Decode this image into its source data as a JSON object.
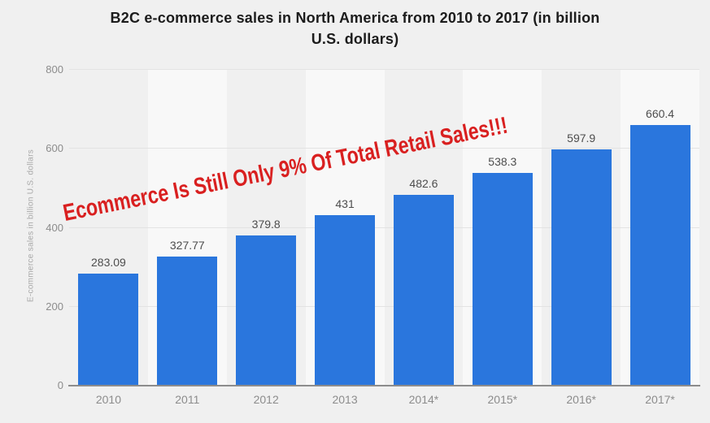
{
  "page": {
    "background": "#f0f0f0"
  },
  "title": {
    "line1": "B2C e-commerce sales in North America from 2010 to 2017 (in billion",
    "line2": "U.S. dollars)"
  },
  "watermark": {
    "text": "Ecommerce Is Still Only 9% Of Total Retail Sales!!!",
    "color": "#d92020"
  },
  "colors": {
    "bar": "#2a76dd",
    "band_light": "#f8f8f8",
    "gridline": "#e3e3e3",
    "axis_line": "#8c8c8c",
    "value_label": "#4d4d4d",
    "tick_label": "#8c8c8c",
    "y_axis_title": "#a8a8a8",
    "title_text": "#1c1c1c"
  },
  "chart_data": {
    "type": "bar",
    "title": "B2C e-commerce sales in North America from 2010 to 2017 (in billion U.S. dollars)",
    "categories": [
      "2010",
      "2011",
      "2012",
      "2013",
      "2014*",
      "2015*",
      "2016*",
      "2017*"
    ],
    "values": [
      283.09,
      327.77,
      379.8,
      431,
      482.6,
      538.3,
      597.9,
      660.4
    ],
    "xlabel": "",
    "ylabel": "E-commerce sales in billion U.S. dollars",
    "ylim": [
      0,
      800
    ],
    "yticks": [
      0,
      200,
      400,
      600,
      800
    ],
    "grid": true,
    "legend": "none",
    "bands": "alternating vertical column shading",
    "annotations": [
      "Ecommerce Is Still Only 9% Of Total Retail Sales!!!"
    ]
  }
}
